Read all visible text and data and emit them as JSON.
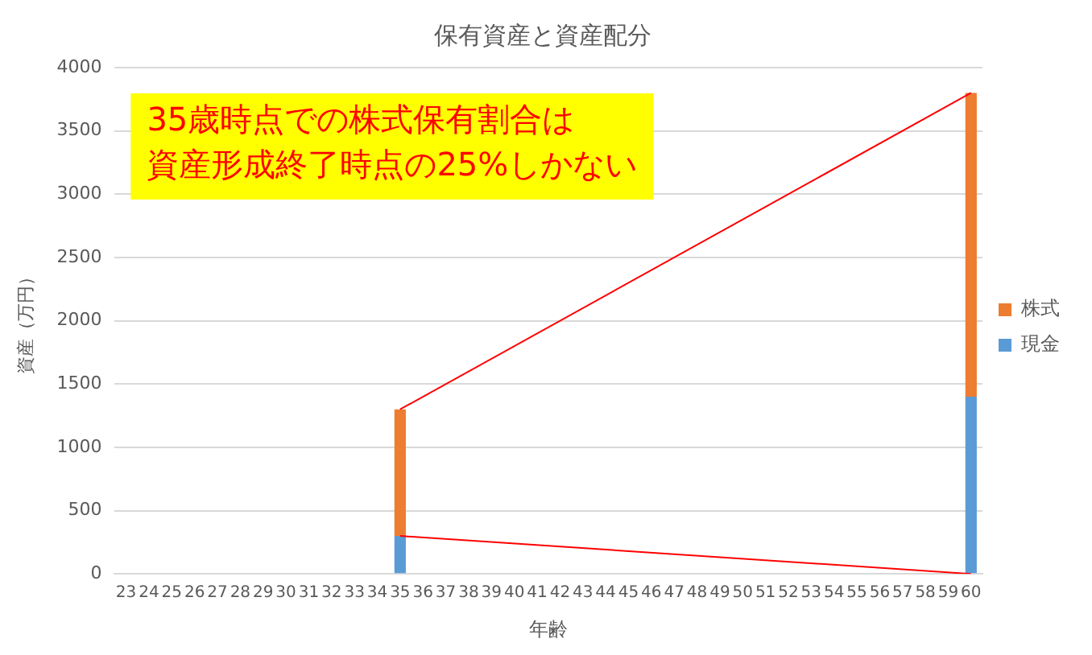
{
  "chart_data": {
    "type": "bar",
    "title": "保有資産と資産配分",
    "xlabel": "年齢",
    "ylabel": "資産（万円）",
    "categories": [
      "23",
      "24",
      "25",
      "26",
      "27",
      "28",
      "29",
      "30",
      "31",
      "32",
      "33",
      "34",
      "35",
      "36",
      "37",
      "38",
      "39",
      "40",
      "41",
      "42",
      "43",
      "44",
      "45",
      "46",
      "47",
      "48",
      "49",
      "50",
      "51",
      "52",
      "53",
      "54",
      "55",
      "56",
      "57",
      "58",
      "59",
      "60"
    ],
    "stacked": true,
    "series": [
      {
        "name": "現金",
        "color": "#5b9bd5",
        "values": [
          null,
          null,
          null,
          null,
          null,
          null,
          null,
          null,
          null,
          null,
          null,
          null,
          300,
          null,
          null,
          null,
          null,
          null,
          null,
          null,
          null,
          null,
          null,
          null,
          null,
          null,
          null,
          null,
          null,
          null,
          null,
          null,
          null,
          null,
          null,
          null,
          null,
          1400
        ]
      },
      {
        "name": "株式",
        "color": "#ed7d31",
        "values": [
          null,
          null,
          null,
          null,
          null,
          null,
          null,
          null,
          null,
          null,
          null,
          null,
          1000,
          null,
          null,
          null,
          null,
          null,
          null,
          null,
          null,
          null,
          null,
          null,
          null,
          null,
          null,
          null,
          null,
          null,
          null,
          null,
          null,
          null,
          null,
          null,
          null,
          2400
        ]
      },
      {
        "type": "line",
        "color": "#ff0000",
        "values": [
          null,
          null,
          null,
          null,
          null,
          null,
          null,
          null,
          null,
          null,
          null,
          null,
          1300,
          null,
          null,
          null,
          null,
          null,
          null,
          null,
          null,
          null,
          null,
          null,
          null,
          null,
          null,
          null,
          null,
          null,
          null,
          null,
          null,
          null,
          null,
          null,
          null,
          3800
        ]
      },
      {
        "type": "line",
        "color": "#ff0000",
        "values": [
          null,
          null,
          null,
          null,
          null,
          null,
          null,
          null,
          null,
          null,
          null,
          null,
          300,
          null,
          null,
          null,
          null,
          null,
          null,
          null,
          null,
          null,
          null,
          null,
          null,
          null,
          null,
          null,
          null,
          null,
          null,
          null,
          null,
          null,
          null,
          null,
          null,
          0
        ]
      }
    ],
    "ylim": [
      0,
      4000
    ],
    "yticks": [
      0,
      500,
      1000,
      1500,
      2000,
      2500,
      3000,
      3500,
      4000
    ],
    "grid": "y",
    "legend": "right",
    "marker": "none",
    "annotations": [
      "35歳時点での株式保有割合は",
      "資産形成終了時点の25%しかない"
    ]
  }
}
